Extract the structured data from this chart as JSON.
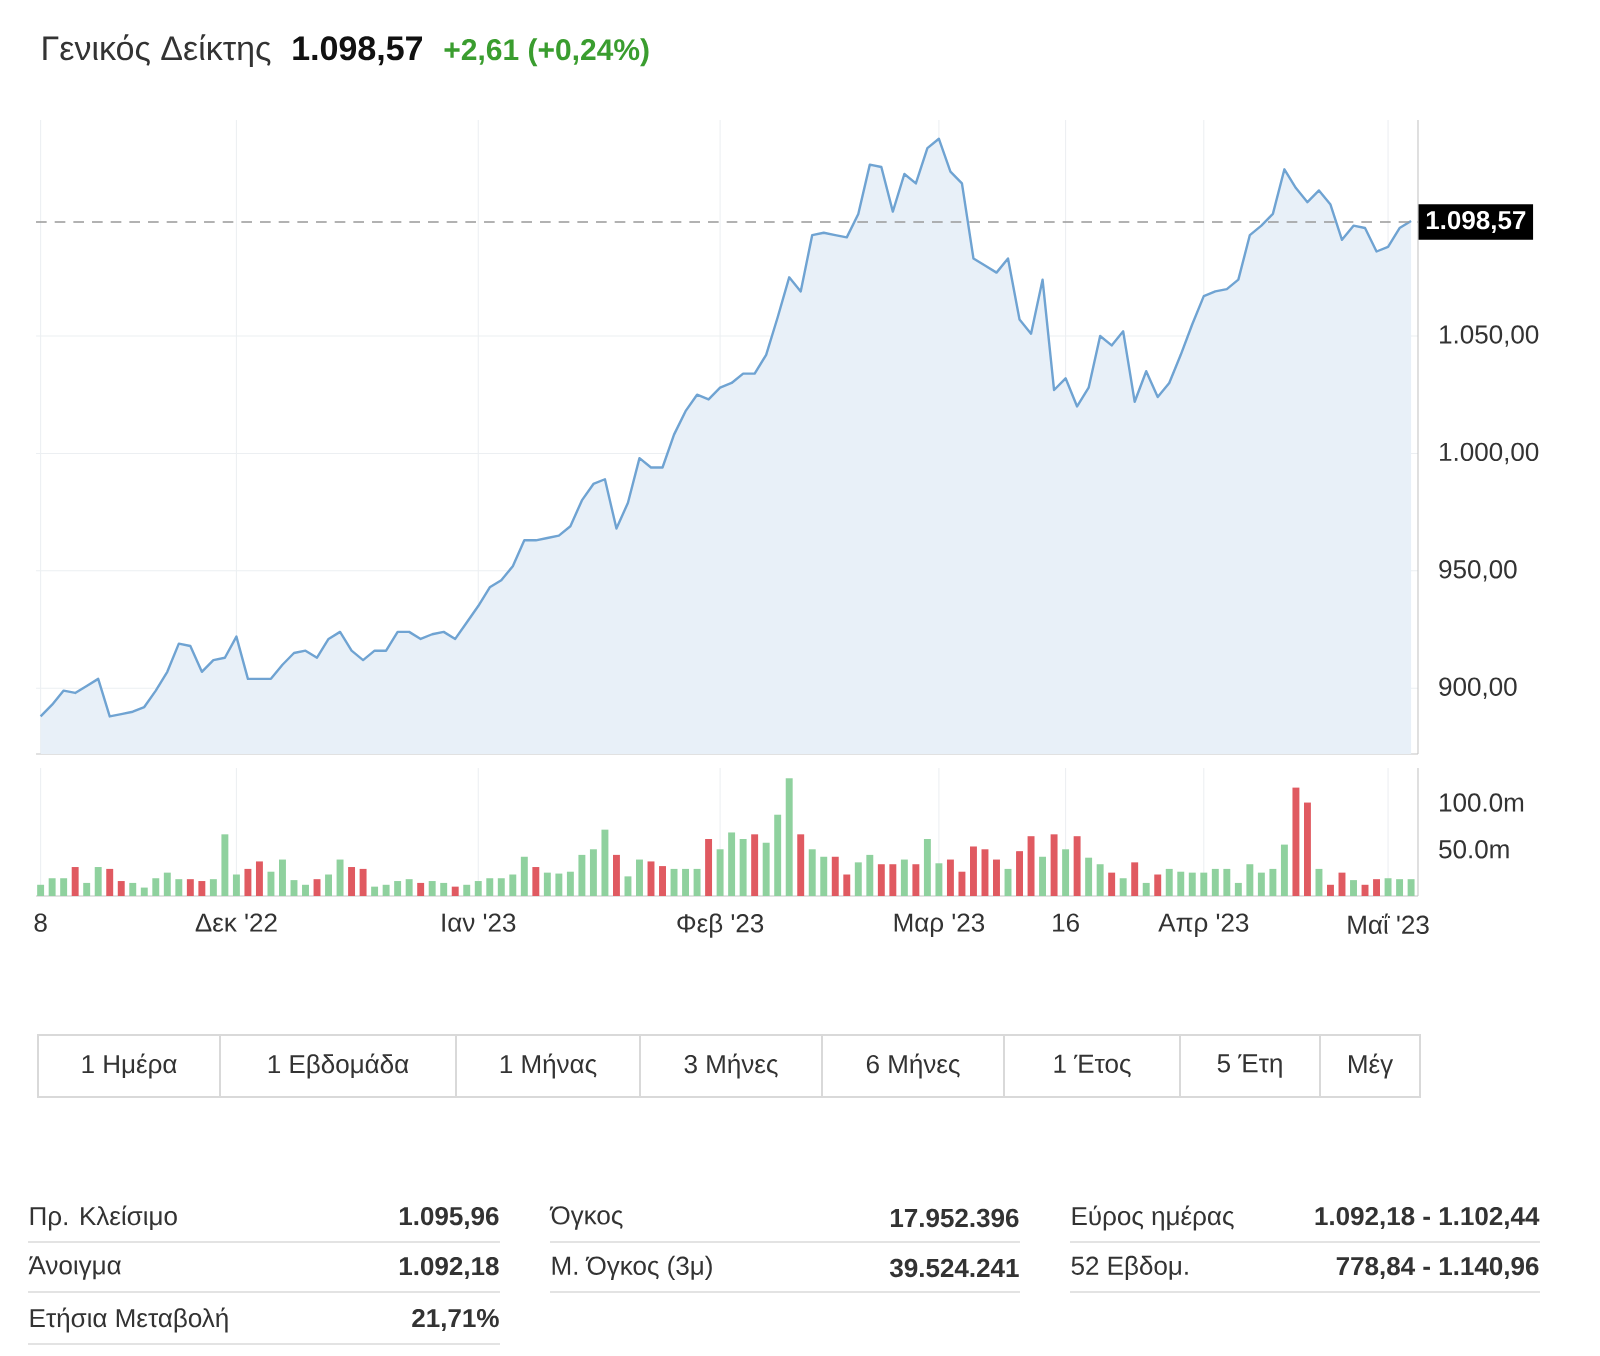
{
  "chart_data": [
    {
      "type": "area",
      "title": "Γενικός Δείκτης",
      "subtitle": "1.098,57",
      "annotations": [
        "+2,61 (+0,24%)"
      ],
      "categories": [
        null,
        null,
        null,
        null,
        null,
        null,
        null,
        null,
        null,
        null,
        null,
        null,
        null,
        null,
        null,
        null,
        null,
        null,
        null,
        null,
        null,
        null,
        null,
        null,
        null,
        null,
        null,
        null,
        null,
        null,
        null,
        null,
        null,
        null,
        null,
        null,
        null,
        null,
        null,
        null,
        null,
        null,
        null,
        null,
        null,
        null,
        null,
        null,
        null,
        null,
        null,
        null,
        null,
        null,
        null,
        null,
        null,
        null,
        null,
        null,
        null,
        null,
        null,
        null,
        null,
        null,
        null,
        null,
        null,
        null,
        null,
        null,
        null,
        null,
        null,
        null,
        null,
        null,
        null,
        null,
        null,
        null,
        null,
        null,
        null,
        null,
        null,
        null,
        null,
        null,
        null,
        null,
        null,
        null,
        null,
        null,
        null,
        null,
        null,
        null,
        null,
        null,
        null,
        null,
        null,
        null,
        null,
        null,
        null,
        null,
        null,
        null,
        null,
        null,
        null,
        null,
        null,
        null,
        null,
        null
      ],
      "values": [
        888,
        893,
        899,
        898,
        901,
        904,
        888,
        889,
        890,
        892,
        899,
        907,
        919,
        918,
        907,
        912,
        913,
        922,
        904,
        904,
        904,
        910,
        915,
        916,
        913,
        921,
        924,
        916,
        912,
        916,
        916,
        924,
        924,
        921,
        923,
        924,
        921,
        928,
        935,
        943,
        946,
        952,
        963,
        963,
        964,
        965,
        969,
        980,
        987,
        989,
        968,
        979,
        998,
        994,
        994,
        1008,
        1018,
        1025,
        1023,
        1028,
        1030,
        1034,
        1034,
        1042,
        1058,
        1075,
        1069,
        1093,
        1094,
        1093,
        1092,
        1102,
        1123,
        1122,
        1103,
        1119,
        1115,
        1130,
        1134,
        1120,
        1115,
        1083,
        1080,
        1077,
        1083,
        1057,
        1051,
        1074,
        1027,
        1032,
        1020,
        1028,
        1050,
        1046,
        1052,
        1022,
        1035,
        1024,
        1030,
        1042,
        1055,
        1067,
        1069,
        1070,
        1074,
        1093,
        1097,
        1102,
        1121,
        1113,
        1107,
        1112,
        1106,
        1091,
        1097,
        1096,
        1086,
        1088,
        1096,
        1099
      ],
      "color": "#6fa3d2",
      "ylim": [
        872,
        1142
      ],
      "yticks": [
        {
          "value": 900,
          "label": "900,00"
        },
        {
          "value": 950,
          "label": "950,00"
        },
        {
          "value": 1000,
          "label": "1.000,00"
        },
        {
          "value": 1050,
          "label": "1.050,00"
        }
      ],
      "grid": true,
      "tick_labels": "y",
      "ref_lines": [
        {
          "axis": "y",
          "value": 1098.57,
          "label": "1.098,57",
          "color": "#999999",
          "line_style": "dashed"
        }
      ]
    },
    {
      "type": "bar",
      "categories": [
        "8",
        null,
        null,
        null,
        null,
        null,
        null,
        null,
        null,
        null,
        null,
        null,
        null,
        null,
        null,
        null,
        null,
        "Δεκ '22",
        null,
        null,
        null,
        null,
        null,
        null,
        null,
        null,
        null,
        null,
        null,
        null,
        null,
        null,
        null,
        null,
        null,
        null,
        null,
        null,
        "Ιαν '23",
        null,
        null,
        null,
        null,
        null,
        null,
        null,
        null,
        null,
        null,
        null,
        null,
        null,
        null,
        null,
        null,
        null,
        null,
        null,
        null,
        "Φεβ '23",
        null,
        null,
        null,
        null,
        null,
        null,
        null,
        null,
        null,
        null,
        null,
        null,
        null,
        null,
        null,
        null,
        null,
        null,
        "Μαρ '23",
        null,
        null,
        null,
        null,
        null,
        null,
        null,
        null,
        null,
        null,
        "16",
        null,
        null,
        null,
        null,
        null,
        null,
        null,
        null,
        null,
        null,
        null,
        "Απρ '23",
        null,
        null,
        null,
        null,
        null,
        null,
        null,
        null,
        null,
        null,
        null,
        null,
        null,
        null,
        null,
        "Μαΐ '23",
        null,
        null
      ],
      "values": [
        12,
        19,
        19,
        31,
        14,
        31,
        29,
        16,
        14,
        9,
        19,
        25,
        18,
        18,
        16,
        18,
        66,
        23,
        29,
        37,
        26,
        39,
        17,
        12,
        18,
        23,
        39,
        31,
        29,
        10,
        12,
        16,
        18,
        14,
        16,
        14,
        10,
        12,
        16,
        19,
        19,
        23,
        42,
        31,
        25,
        24,
        26,
        44,
        50,
        71,
        44,
        21,
        39,
        37,
        32,
        29,
        29,
        29,
        61,
        50,
        68,
        61,
        66,
        57,
        87,
        126,
        66,
        50,
        42,
        42,
        23,
        36,
        44,
        34,
        34,
        39,
        34,
        61,
        35,
        39,
        26,
        53,
        50,
        39,
        29,
        48,
        64,
        42,
        66,
        50,
        64,
        41,
        34,
        25,
        19,
        36,
        14,
        23,
        29,
        26,
        25,
        25,
        29,
        29,
        14,
        34,
        25,
        29,
        55,
        116,
        100,
        29,
        12,
        25,
        17,
        12,
        18,
        19,
        18,
        18
      ],
      "colors": [
        "#8fd19e",
        "#8fd19e",
        "#8fd19e",
        "#e05a61",
        "#8fd19e",
        "#8fd19e",
        "#e05a61",
        "#e05a61",
        "#8fd19e",
        "#8fd19e",
        "#8fd19e",
        "#8fd19e",
        "#8fd19e",
        "#e05a61",
        "#e05a61",
        "#8fd19e",
        "#8fd19e",
        "#8fd19e",
        "#e05a61",
        "#e05a61",
        "#8fd19e",
        "#8fd19e",
        "#8fd19e",
        "#8fd19e",
        "#e05a61",
        "#8fd19e",
        "#8fd19e",
        "#e05a61",
        "#e05a61",
        "#8fd19e",
        "#8fd19e",
        "#8fd19e",
        "#8fd19e",
        "#e05a61",
        "#8fd19e",
        "#8fd19e",
        "#e05a61",
        "#8fd19e",
        "#8fd19e",
        "#8fd19e",
        "#8fd19e",
        "#8fd19e",
        "#8fd19e",
        "#e05a61",
        "#8fd19e",
        "#8fd19e",
        "#8fd19e",
        "#8fd19e",
        "#8fd19e",
        "#8fd19e",
        "#e05a61",
        "#8fd19e",
        "#8fd19e",
        "#e05a61",
        "#e05a61",
        "#8fd19e",
        "#8fd19e",
        "#8fd19e",
        "#e05a61",
        "#8fd19e",
        "#8fd19e",
        "#8fd19e",
        "#e05a61",
        "#8fd19e",
        "#8fd19e",
        "#8fd19e",
        "#e05a61",
        "#8fd19e",
        "#8fd19e",
        "#e05a61",
        "#e05a61",
        "#8fd19e",
        "#8fd19e",
        "#e05a61",
        "#e05a61",
        "#8fd19e",
        "#e05a61",
        "#8fd19e",
        "#8fd19e",
        "#e05a61",
        "#e05a61",
        "#e05a61",
        "#e05a61",
        "#e05a61",
        "#8fd19e",
        "#e05a61",
        "#e05a61",
        "#8fd19e",
        "#e05a61",
        "#8fd19e",
        "#e05a61",
        "#8fd19e",
        "#8fd19e",
        "#e05a61",
        "#8fd19e",
        "#e05a61",
        "#8fd19e",
        "#e05a61",
        "#8fd19e",
        "#8fd19e",
        "#8fd19e",
        "#8fd19e",
        "#8fd19e",
        "#8fd19e",
        "#8fd19e",
        "#8fd19e",
        "#8fd19e",
        "#8fd19e",
        "#8fd19e",
        "#e05a61",
        "#e05a61",
        "#8fd19e",
        "#e05a61",
        "#e05a61",
        "#8fd19e",
        "#e05a61",
        "#e05a61",
        "#8fd19e",
        "#8fd19e",
        "#8fd19e"
      ],
      "ylim": [
        0,
        137
      ],
      "yticks": [
        {
          "value": 50,
          "label": "50.0m"
        },
        {
          "value": 100,
          "label": "100.0m"
        }
      ],
      "grid": "x"
    },
    {
      "type": "other",
      "annotations": [
        "1 Ημέρα",
        "1 Εβδομάδα",
        "1 Μήνας",
        "3 Μήνες",
        "6 Μήνες",
        "1 Έτος",
        "5 Έτη",
        "Μέγ",
        "Πρ. Κλείσιμο",
        "1.095,96",
        "Άνοιγμα",
        "1.092,18",
        "Ετήσια Μεταβολή",
        "21,71%",
        "Όγκος",
        "17.952.396",
        "Μ. Όγκος (3μ)",
        "39.524.241",
        "Εύρος ημέρας",
        "1.092,18 - 1.102,44",
        "52 Εβδομ.",
        "778,84 - 1.140,96"
      ]
    }
  ]
}
